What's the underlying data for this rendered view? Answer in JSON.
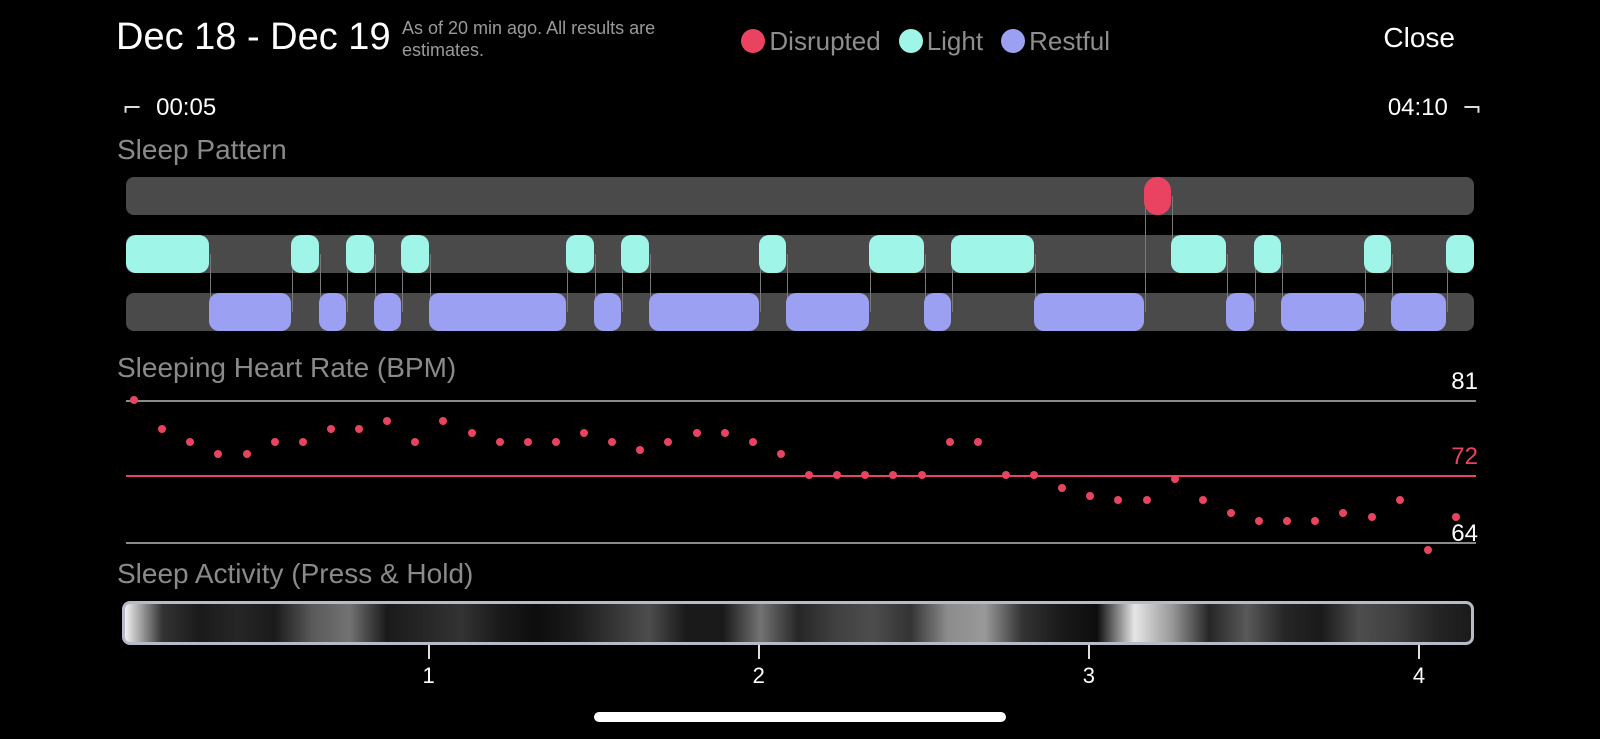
{
  "header": {
    "title": "Dec 18 - Dec 19",
    "subtitle": "As of 20 min ago. All results are estimates.",
    "close_label": "Close"
  },
  "legend": [
    {
      "label": "Disrupted",
      "color": "#ea4362"
    },
    {
      "label": "Light",
      "color": "#9ef5e8"
    },
    {
      "label": "Restful",
      "color": "#9ba0f3"
    }
  ],
  "time_range": {
    "start": "00:05",
    "end": "04:10"
  },
  "sections": {
    "sleep_pattern": "Sleep Pattern",
    "heart_rate": "Sleeping Heart Rate (BPM)",
    "activity": "Sleep Activity (Press & Hold)"
  },
  "colors": {
    "disrupted": "#ea4362",
    "light": "#9ef5e8",
    "restful": "#9ba0f3",
    "track": "#4a4a4a",
    "avg_line": "#e8435f",
    "bound_line": "#8a8a8a"
  },
  "sleep_pattern": {
    "duration_min": 245,
    "segments": [
      {
        "stage": "light",
        "start": 0,
        "end": 15
      },
      {
        "stage": "restful",
        "start": 15,
        "end": 30
      },
      {
        "stage": "light",
        "start": 30,
        "end": 35
      },
      {
        "stage": "restful",
        "start": 35,
        "end": 40
      },
      {
        "stage": "light",
        "start": 40,
        "end": 45
      },
      {
        "stage": "restful",
        "start": 45,
        "end": 50
      },
      {
        "stage": "light",
        "start": 50,
        "end": 55
      },
      {
        "stage": "restful",
        "start": 55,
        "end": 80
      },
      {
        "stage": "light",
        "start": 80,
        "end": 85
      },
      {
        "stage": "restful",
        "start": 85,
        "end": 90
      },
      {
        "stage": "light",
        "start": 90,
        "end": 95
      },
      {
        "stage": "restful",
        "start": 95,
        "end": 115
      },
      {
        "stage": "light",
        "start": 115,
        "end": 120
      },
      {
        "stage": "restful",
        "start": 120,
        "end": 135
      },
      {
        "stage": "light",
        "start": 135,
        "end": 145
      },
      {
        "stage": "restful",
        "start": 145,
        "end": 150
      },
      {
        "stage": "light",
        "start": 150,
        "end": 165
      },
      {
        "stage": "restful",
        "start": 165,
        "end": 185
      },
      {
        "stage": "disrupted",
        "start": 185,
        "end": 190
      },
      {
        "stage": "light",
        "start": 190,
        "end": 200
      },
      {
        "stage": "restful",
        "start": 200,
        "end": 205
      },
      {
        "stage": "light",
        "start": 205,
        "end": 210
      },
      {
        "stage": "restful",
        "start": 210,
        "end": 225
      },
      {
        "stage": "light",
        "start": 225,
        "end": 230
      },
      {
        "stage": "restful",
        "start": 230,
        "end": 240
      },
      {
        "stage": "light",
        "start": 240,
        "end": 245
      }
    ]
  },
  "heart_rate": {
    "max_label": "81",
    "avg_label": "72",
    "min_label": "64",
    "max": 81,
    "avg": 72,
    "min": 64,
    "values": [
      81,
      77.5,
      76,
      74.5,
      74.5,
      76,
      76,
      77.5,
      77.5,
      78.5,
      76,
      78.5,
      77,
      76,
      76,
      76,
      77,
      76,
      75,
      76,
      77,
      77,
      76,
      74.5,
      72,
      72,
      72,
      72,
      72,
      76,
      76,
      72,
      72,
      70.5,
      69.5,
      69,
      69,
      71.5,
      69,
      67.5,
      66.5,
      66.5,
      66.5,
      67.5,
      67,
      69,
      63,
      67
    ]
  },
  "activity": {
    "intensity": [
      0.95,
      0.2,
      0.1,
      0.15,
      0.1,
      0.35,
      0.45,
      0.1,
      0.15,
      0.2,
      0.1,
      0.05,
      0.1,
      0.2,
      0.3,
      0.1,
      0.1,
      0.45,
      0.15,
      0.25,
      0.3,
      0.2,
      0.55,
      0.6,
      0.2,
      0.1,
      0.05,
      0.9,
      0.6,
      0.15,
      0.35,
      0.15,
      0.1,
      0.3,
      0.25,
      0.15,
      0.1
    ]
  },
  "axis_ticks": [
    "1",
    "2",
    "3",
    "4"
  ]
}
